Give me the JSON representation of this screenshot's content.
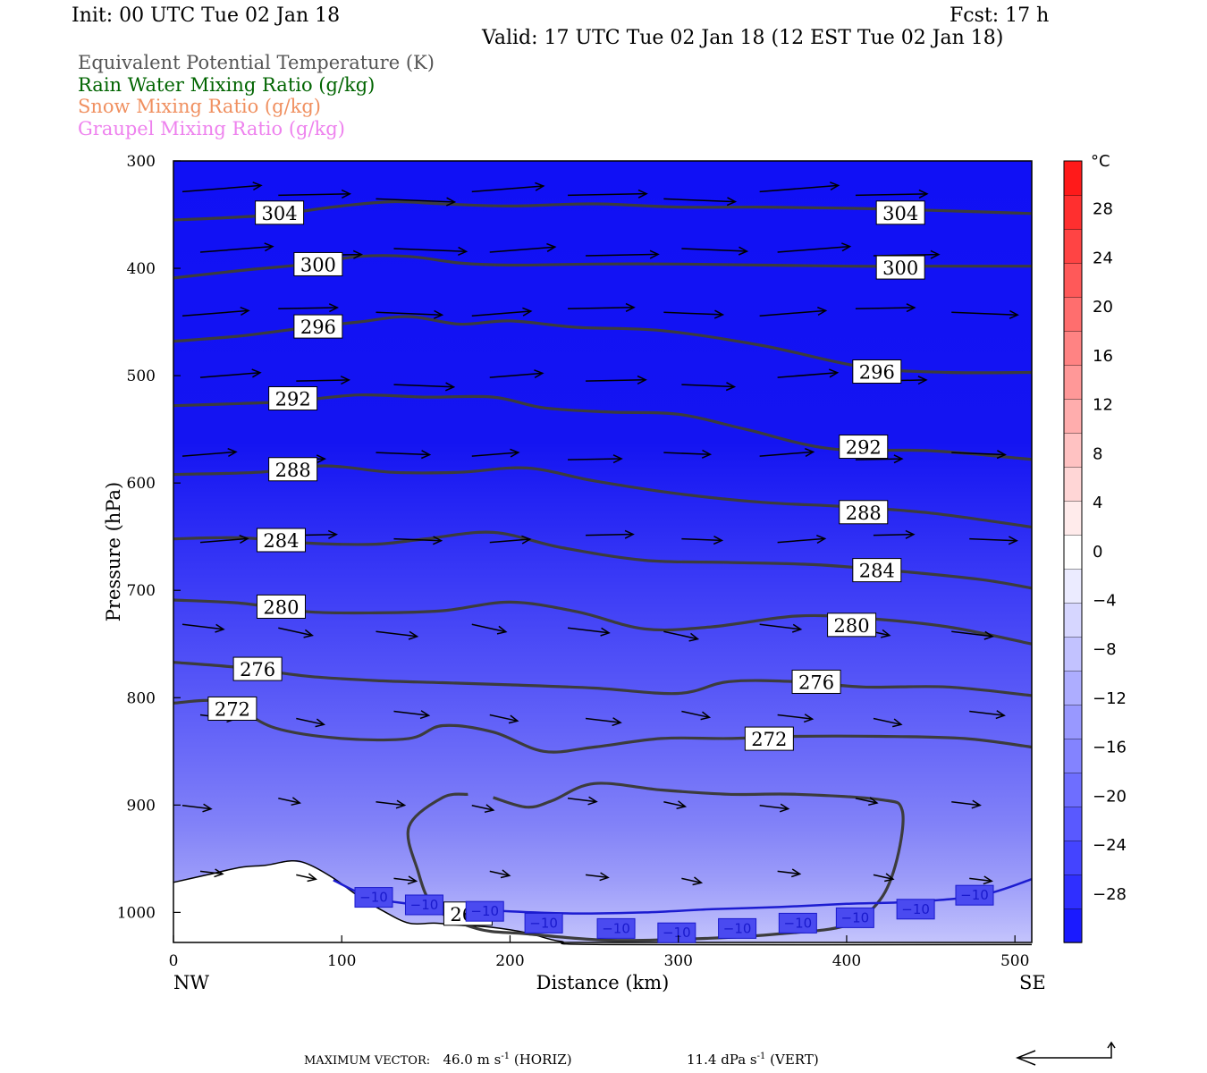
{
  "header": {
    "init": "Init: 00 UTC Tue 02 Jan 18",
    "fcst": "Fcst:   17 h",
    "valid": "Valid: 17 UTC Tue 02 Jan 18 (12 EST Tue 02 Jan 18)"
  },
  "legend": [
    {
      "text": "Equivalent Potential Temperature (K)",
      "color": "#555555"
    },
    {
      "text": "Rain Water Mixing Ratio (g/kg)",
      "color": "#006400"
    },
    {
      "text": "Snow Mixing Ratio (g/kg)",
      "color": "#f09060"
    },
    {
      "text": "Graupel Mixing Ratio (g/kg)",
      "color": "#ee82ee"
    }
  ],
  "chart_data": {
    "type": "heatmap",
    "xlabel": "Distance (km)",
    "ylabel": "Pressure (hPa)",
    "xlim": [
      0,
      510
    ],
    "ylim": [
      1028,
      300
    ],
    "x_ticks": [
      0,
      100,
      200,
      300,
      400,
      500
    ],
    "y_ticks": [
      300,
      400,
      500,
      600,
      700,
      800,
      900,
      1000
    ],
    "x_end_labels": {
      "left": "NW",
      "right": "SE"
    },
    "colorbar": {
      "unit": "°C",
      "labels": [
        "28",
        "24",
        "20",
        "16",
        "12",
        "8",
        "4",
        "0",
        "−4",
        "−8",
        "−12",
        "−16",
        "−20",
        "−24",
        "−28"
      ],
      "colors": [
        "#1a1aff",
        "#2f2fff",
        "#4444ff",
        "#5959ff",
        "#6e6eff",
        "#8383ff",
        "#9898ff",
        "#adadff",
        "#c2c2ff",
        "#d6d6ff",
        "#ebebff",
        "#ffffff",
        "#ffebeb",
        "#ffd6d6",
        "#ffc2c2",
        "#ffadad",
        "#ff9898",
        "#ff8383",
        "#ff6e6e",
        "#ff5959",
        "#ff4444",
        "#ff2f2f",
        "#ff1a1a"
      ]
    },
    "theta_e_contours": [
      {
        "label": "304",
        "level": 304,
        "points": [
          [
            0,
            355
          ],
          [
            30,
            353
          ],
          [
            60,
            350
          ],
          [
            100,
            342
          ],
          [
            130,
            338
          ],
          [
            160,
            340
          ],
          [
            200,
            342
          ],
          [
            250,
            340
          ],
          [
            300,
            343
          ],
          [
            350,
            343
          ],
          [
            400,
            344
          ],
          [
            450,
            346
          ],
          [
            510,
            349
          ]
        ],
        "label_positions": [
          [
            63,
            349
          ],
          [
            432,
            349
          ]
        ]
      },
      {
        "label": "300",
        "level": 300,
        "points": [
          [
            0,
            409
          ],
          [
            40,
            402
          ],
          [
            80,
            396
          ],
          [
            110,
            389
          ],
          [
            140,
            389
          ],
          [
            170,
            395
          ],
          [
            200,
            397
          ],
          [
            250,
            396
          ],
          [
            300,
            396
          ],
          [
            350,
            397
          ],
          [
            400,
            398
          ],
          [
            450,
            398
          ],
          [
            510,
            398
          ]
        ],
        "label_positions": [
          [
            86,
            397
          ],
          [
            432,
            400
          ]
        ]
      },
      {
        "label": "296",
        "level": 296,
        "points": [
          [
            0,
            468
          ],
          [
            40,
            463
          ],
          [
            80,
            455
          ],
          [
            110,
            450
          ],
          [
            140,
            445
          ],
          [
            170,
            452
          ],
          [
            200,
            449
          ],
          [
            240,
            455
          ],
          [
            290,
            458
          ],
          [
            350,
            472
          ],
          [
            410,
            492
          ],
          [
            460,
            497
          ],
          [
            510,
            497
          ]
        ],
        "label_positions": [
          [
            86,
            455
          ],
          [
            418,
            497
          ]
        ]
      },
      {
        "label": "292",
        "level": 292,
        "points": [
          [
            0,
            528
          ],
          [
            40,
            526
          ],
          [
            70,
            524
          ],
          [
            110,
            518
          ],
          [
            150,
            520
          ],
          [
            190,
            520
          ],
          [
            220,
            530
          ],
          [
            260,
            534
          ],
          [
            300,
            536
          ],
          [
            340,
            550
          ],
          [
            390,
            568
          ],
          [
            450,
            570
          ],
          [
            510,
            578
          ]
        ],
        "label_positions": [
          [
            71,
            522
          ],
          [
            410,
            567
          ]
        ]
      },
      {
        "label": "288",
        "level": 288,
        "points": [
          [
            0,
            592
          ],
          [
            50,
            590
          ],
          [
            90,
            584
          ],
          [
            130,
            590
          ],
          [
            170,
            590
          ],
          [
            210,
            586
          ],
          [
            250,
            598
          ],
          [
            300,
            610
          ],
          [
            350,
            618
          ],
          [
            400,
            622
          ],
          [
            450,
            628
          ],
          [
            510,
            641
          ]
        ],
        "label_positions": [
          [
            71,
            588
          ],
          [
            410,
            628
          ]
        ]
      },
      {
        "label": "284",
        "level": 284,
        "points": [
          [
            0,
            652
          ],
          [
            40,
            651
          ],
          [
            80,
            656
          ],
          [
            120,
            657
          ],
          [
            150,
            652
          ],
          [
            190,
            646
          ],
          [
            230,
            660
          ],
          [
            280,
            672
          ],
          [
            330,
            674
          ],
          [
            380,
            676
          ],
          [
            430,
            682
          ],
          [
            480,
            690
          ],
          [
            510,
            698
          ]
        ],
        "label_positions": [
          [
            64,
            654
          ],
          [
            418,
            682
          ]
        ]
      },
      {
        "label": "280",
        "level": 280,
        "points": [
          [
            0,
            709
          ],
          [
            40,
            712
          ],
          [
            80,
            720
          ],
          [
            120,
            721
          ],
          [
            160,
            719
          ],
          [
            200,
            711
          ],
          [
            240,
            720
          ],
          [
            280,
            736
          ],
          [
            320,
            734
          ],
          [
            370,
            724
          ],
          [
            410,
            726
          ],
          [
            460,
            734
          ],
          [
            510,
            750
          ]
        ],
        "label_positions": [
          [
            64,
            716
          ],
          [
            403,
            733
          ]
        ]
      },
      {
        "label": "276",
        "level": 276,
        "points": [
          [
            0,
            767
          ],
          [
            40,
            772
          ],
          [
            80,
            780
          ],
          [
            120,
            784
          ],
          [
            160,
            786
          ],
          [
            200,
            788
          ],
          [
            250,
            791
          ],
          [
            300,
            796
          ],
          [
            330,
            785
          ],
          [
            370,
            785
          ],
          [
            410,
            790
          ],
          [
            460,
            790
          ],
          [
            510,
            798
          ]
        ],
        "label_positions": [
          [
            50,
            774
          ],
          [
            382,
            786
          ]
        ]
      },
      {
        "label": "272",
        "level": 272,
        "points": [
          [
            0,
            805
          ],
          [
            30,
            804
          ],
          [
            60,
            828
          ],
          [
            100,
            838
          ],
          [
            140,
            838
          ],
          [
            160,
            826
          ],
          [
            190,
            832
          ],
          [
            220,
            850
          ],
          [
            250,
            846
          ],
          [
            290,
            838
          ],
          [
            330,
            838
          ],
          [
            370,
            836
          ],
          [
            420,
            836
          ],
          [
            470,
            838
          ],
          [
            510,
            846
          ]
        ],
        "label_positions": [
          [
            35,
            811
          ],
          [
            354,
            839
          ]
        ]
      },
      {
        "label": "268",
        "level": 268,
        "points": [
          [
            175,
            890
          ],
          [
            160,
            893
          ],
          [
            140,
            920
          ],
          [
            145,
            960
          ],
          [
            155,
            995
          ],
          [
            180,
            1015
          ],
          [
            210,
            1020
          ],
          [
            260,
            1026
          ],
          [
            320,
            1024
          ],
          [
            360,
            1020
          ],
          [
            400,
            1012
          ],
          [
            420,
            988
          ],
          [
            430,
            950
          ],
          [
            433,
            905
          ],
          [
            420,
            895
          ],
          [
            370,
            890
          ],
          [
            330,
            890
          ],
          [
            290,
            886
          ],
          [
            250,
            880
          ],
          [
            225,
            896
          ],
          [
            210,
            902
          ],
          [
            190,
            893
          ]
        ],
        "label_positions": [
          [
            175,
            1002
          ]
        ]
      }
    ],
    "isotherm_minus10": {
      "label": "−10",
      "points": [
        [
          95,
          970
        ],
        [
          120,
          987
        ],
        [
          160,
          995
        ],
        [
          200,
          999
        ],
        [
          240,
          1001
        ],
        [
          280,
          1000
        ],
        [
          320,
          997
        ],
        [
          360,
          995
        ],
        [
          400,
          992
        ],
        [
          440,
          990
        ],
        [
          480,
          984
        ],
        [
          510,
          969
        ]
      ],
      "label_positions": [
        [
          119,
          986
        ],
        [
          149,
          993
        ],
        [
          185,
          999
        ],
        [
          220,
          1010
        ],
        [
          263,
          1015
        ],
        [
          299,
          1019
        ],
        [
          335,
          1015
        ],
        [
          371,
          1010
        ],
        [
          405,
          1005
        ],
        [
          441,
          997
        ],
        [
          476,
          984
        ]
      ]
    },
    "terrain_pressure": [
      [
        0,
        972
      ],
      [
        20,
        965
      ],
      [
        40,
        958
      ],
      [
        55,
        956
      ],
      [
        70,
        952
      ],
      [
        80,
        955
      ],
      [
        95,
        968
      ],
      [
        110,
        985
      ],
      [
        125,
        999
      ],
      [
        140,
        1010
      ],
      [
        155,
        1010
      ],
      [
        170,
        1012
      ],
      [
        190,
        1014
      ],
      [
        210,
        1019
      ],
      [
        230,
        1027
      ],
      [
        260,
        1030
      ],
      [
        510,
        1030
      ]
    ],
    "wind_vectors": {
      "x_columns": [
        0,
        57,
        115,
        172,
        229,
        286,
        343,
        400,
        457
      ],
      "pressure_rows": [
        332,
        385,
        441,
        505,
        575,
        652,
        735,
        816,
        897,
        965
      ],
      "max_vector_horiz": "46.0",
      "max_vector_vert": "11.4"
    }
  },
  "footer": {
    "label": "MAXIMUM VECTOR:",
    "horiz_value": "46.0",
    "horiz_unit": "m s",
    "horiz_exp": "-1",
    "horiz_tag": "(HORIZ)",
    "vert_value": "11.4",
    "vert_unit": "dPa s",
    "vert_exp": "-1",
    "vert_tag": "(VERT)"
  }
}
